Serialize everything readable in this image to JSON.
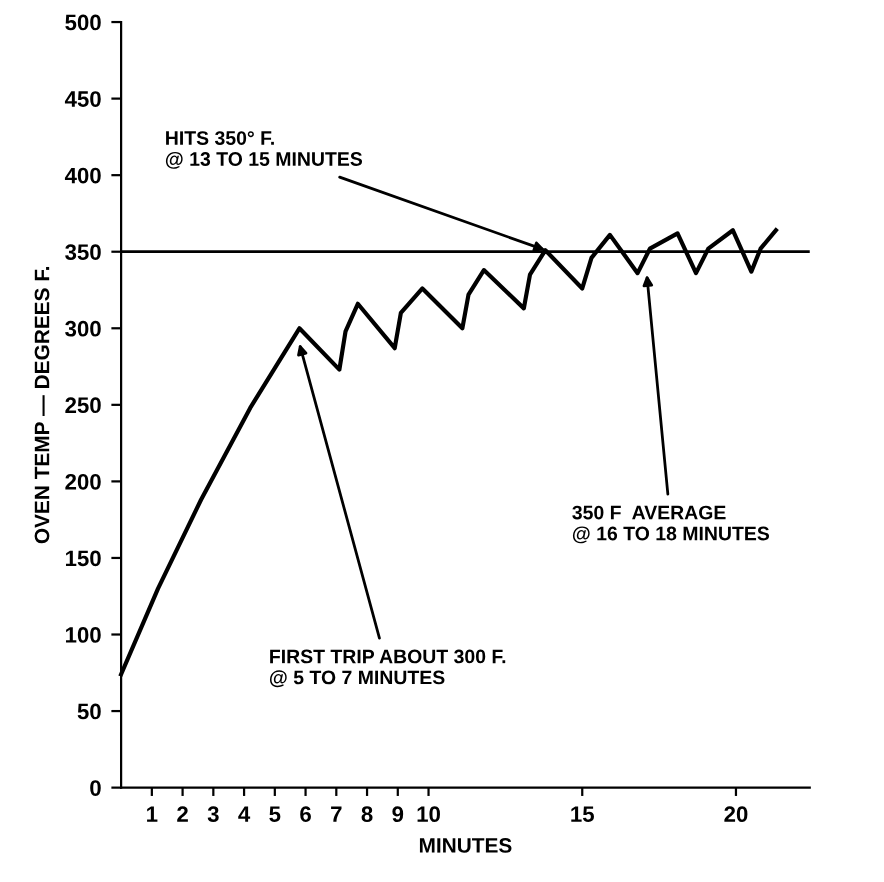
{
  "chart_data": {
    "type": "line",
    "xlabel": "MINUTES",
    "ylabel": "OVEN TEMP — DEGREES F.",
    "x": [
      0,
      1.2,
      2.6,
      4.2,
      5.8,
      7.1,
      7.3,
      7.7,
      8.9,
      9.1,
      9.8,
      11.1,
      11.3,
      11.8,
      13.1,
      13.3,
      13.8,
      15.0,
      15.3,
      15.9,
      16.8,
      17.2,
      18.1,
      18.7,
      19.1,
      19.9,
      20.5,
      20.8,
      21.3
    ],
    "series": [
      {
        "color": "#000000",
        "values": [
          74,
          130,
          188,
          248,
          300,
          273,
          298,
          316,
          287,
          310,
          326,
          300,
          322,
          338,
          313,
          335,
          351,
          326,
          346,
          361,
          336,
          352,
          362,
          336,
          352,
          364,
          337,
          352,
          364
        ]
      }
    ],
    "xlim": [
      0,
      22.4
    ],
    "ylim": [
      0,
      500
    ],
    "xticks": [
      1,
      2,
      3,
      4,
      5,
      6,
      7,
      8,
      9,
      10,
      15,
      20
    ],
    "yticks": [
      0,
      50,
      100,
      150,
      200,
      250,
      300,
      350,
      400,
      450,
      500
    ],
    "ref_lines": [
      {
        "axis": "y",
        "value": 350,
        "color": "#000000"
      }
    ],
    "annotations": [
      {
        "text": "HITS 350° F.\n@ 13 TO 15 MINUTES",
        "x": 13.8,
        "y": 351
      },
      {
        "text": "FIRST TRIP ABOUT 300 F.\n@ 5 TO 7 MINUTES",
        "x": 5.8,
        "y": 290
      },
      {
        "text": "350 F  AVERAGE\n@ 16 TO 18 MINUTES",
        "x": 17.1,
        "y": 335
      }
    ],
    "grid": false,
    "legend": false,
    "marker": "none",
    "line_style": "solid"
  }
}
